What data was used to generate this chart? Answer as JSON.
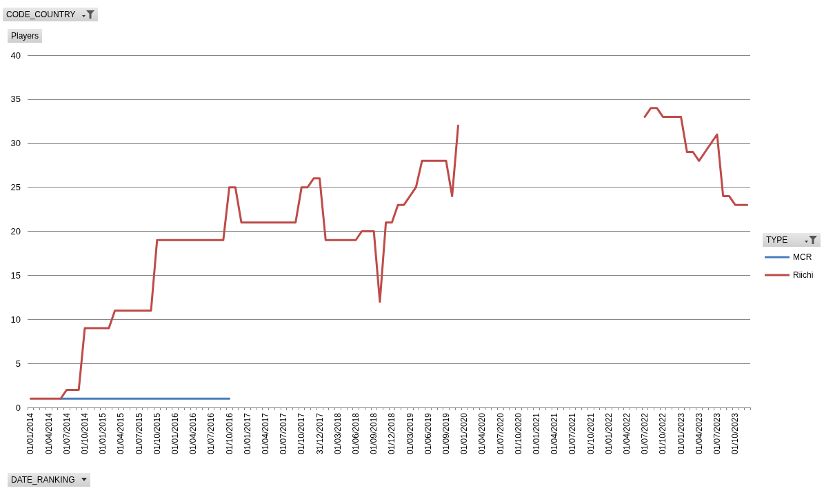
{
  "chart_data": {
    "type": "line",
    "annotations": [
      "CODE_COUNTRY"
    ],
    "ylabel": "Players",
    "xlabel": "DATE_RANKING",
    "legend_title": "TYPE",
    "categories": [
      "01/01/2014",
      null,
      null,
      "01/04/2014",
      null,
      null,
      "01/07/2014",
      null,
      null,
      "01/10/2014",
      null,
      null,
      "01/01/2015",
      null,
      null,
      "01/04/2015",
      null,
      null,
      "01/07/2015",
      null,
      null,
      "01/10/2015",
      null,
      null,
      "01/01/2016",
      null,
      null,
      "01/04/2016",
      null,
      null,
      "01/07/2016",
      null,
      null,
      "01/10/2016",
      null,
      null,
      "01/01/2017",
      null,
      null,
      "01/04/2017",
      null,
      null,
      "01/07/2017",
      null,
      null,
      "01/10/2017",
      null,
      null,
      "31/12/2017",
      null,
      null,
      "01/03/2018",
      null,
      null,
      "01/06/2018",
      null,
      null,
      "01/09/2018",
      null,
      null,
      "01/12/2018",
      null,
      null,
      "01/03/2019",
      null,
      null,
      "01/06/2019",
      null,
      null,
      "01/09/2019",
      null,
      null,
      "01/01/2020",
      null,
      null,
      "01/04/2020",
      null,
      null,
      "01/07/2020",
      null,
      null,
      "01/10/2020",
      null,
      null,
      "01/01/2021",
      null,
      null,
      "01/04/2021",
      null,
      null,
      "01/07/2021",
      null,
      null,
      "01/10/2021",
      null,
      null,
      "01/01/2022",
      null,
      null,
      "01/04/2022",
      null,
      null,
      "01/07/2022",
      null,
      null,
      "01/10/2022",
      null,
      null,
      "01/01/2023",
      null,
      null,
      "01/04/2023",
      null,
      null,
      "01/07/2023",
      null,
      null,
      "01/10/2023",
      null,
      null
    ],
    "series": [
      {
        "name": "MCR",
        "color": "#4a7ebb",
        "values": [
          null,
          null,
          null,
          null,
          null,
          1,
          1,
          1,
          1,
          1,
          1,
          1,
          1,
          1,
          1,
          1,
          1,
          1,
          1,
          1,
          1,
          1,
          1,
          1,
          1,
          1,
          1,
          1,
          1,
          1,
          1,
          1,
          1,
          1,
          null,
          null,
          null,
          null,
          null,
          null,
          null,
          null,
          null,
          null,
          null,
          null,
          null,
          null,
          null,
          null,
          null,
          null,
          null,
          null,
          null,
          null,
          null,
          null,
          null,
          null,
          null,
          null,
          null,
          null,
          null,
          null,
          null,
          null,
          null,
          null,
          null,
          null,
          null,
          null,
          null,
          null,
          null,
          null,
          null,
          null,
          null,
          null,
          null,
          null,
          null,
          null,
          null,
          null,
          null,
          null,
          null,
          null,
          null,
          null,
          null,
          null,
          null,
          null,
          null,
          null,
          null,
          null,
          null,
          null,
          null,
          null,
          null,
          null,
          null,
          null,
          null,
          null,
          null,
          null,
          null,
          null,
          null,
          null,
          null,
          null
        ]
      },
      {
        "name": "Riichi",
        "color": "#be4b48",
        "values": [
          1,
          1,
          1,
          1,
          1,
          1,
          2,
          2,
          2,
          9,
          9,
          9,
          9,
          9,
          11,
          11,
          11,
          11,
          11,
          11,
          11,
          19,
          19,
          19,
          19,
          19,
          19,
          19,
          19,
          19,
          19,
          19,
          19,
          25,
          25,
          21,
          21,
          21,
          21,
          21,
          21,
          21,
          21,
          21,
          21,
          25,
          25,
          26,
          26,
          19,
          19,
          19,
          19,
          19,
          19,
          20,
          20,
          20,
          12,
          21,
          21,
          23,
          23,
          24,
          25,
          28,
          28,
          28,
          28,
          28,
          24,
          32,
          null,
          null,
          null,
          null,
          null,
          null,
          null,
          null,
          null,
          null,
          null,
          null,
          null,
          null,
          null,
          null,
          null,
          null,
          null,
          null,
          null,
          null,
          null,
          null,
          null,
          null,
          null,
          null,
          null,
          null,
          33,
          34,
          34,
          33,
          33,
          33,
          33,
          29,
          29,
          28,
          29,
          30,
          31,
          24,
          24,
          23,
          23,
          23
        ]
      }
    ],
    "ylim": [
      0,
      40
    ],
    "yticks": [
      0,
      5,
      10,
      15,
      20,
      25,
      30,
      35,
      40
    ],
    "grid": "y",
    "legend": "right",
    "marker": "none",
    "line_style": "solid"
  }
}
